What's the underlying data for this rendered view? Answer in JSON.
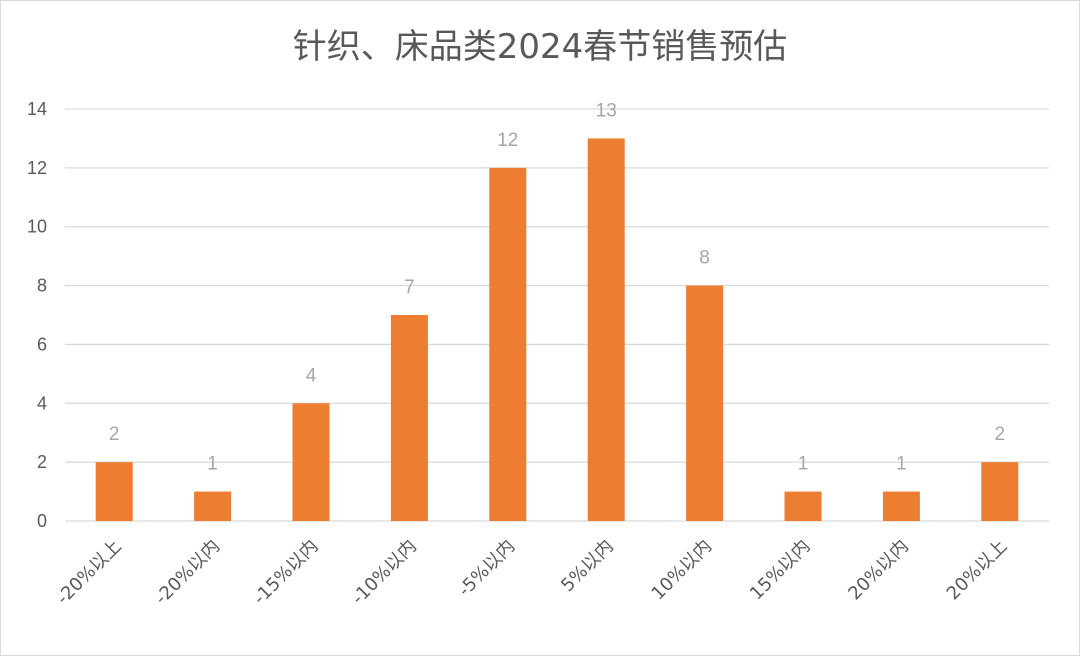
{
  "chart_data": {
    "type": "bar",
    "title": "针织、床品类2024春节销售预估",
    "categories": [
      "-20%以上",
      "-20%以内",
      "-15%以内",
      "-10%以内",
      "-5%以内",
      "5%以内",
      "10%以内",
      "15%以内",
      "20%以内",
      "20%以上"
    ],
    "values": [
      2,
      1,
      4,
      7,
      12,
      13,
      8,
      1,
      1,
      2
    ],
    "ylim": [
      0,
      14
    ],
    "yticks": [
      0,
      2,
      4,
      6,
      8,
      10,
      12,
      14
    ],
    "grid": true,
    "bar_color": "#ED7D31",
    "grid_color": "#D9D9D9",
    "data_labels": true
  }
}
